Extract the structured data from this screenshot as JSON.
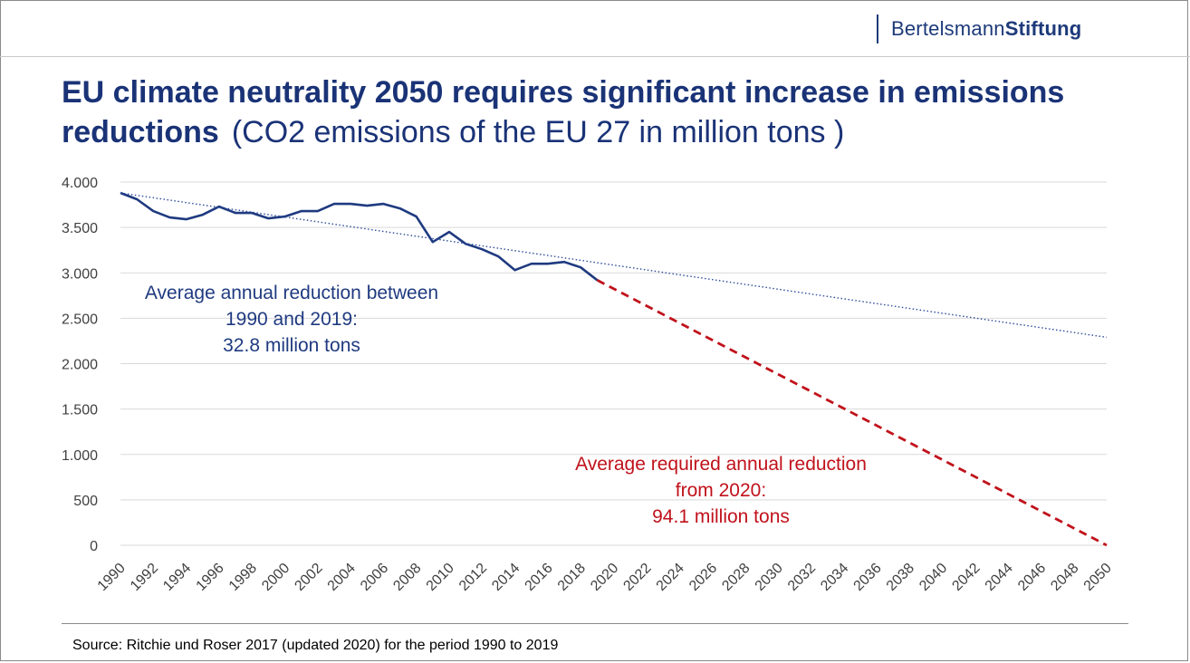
{
  "header": {
    "logo_part1": "Bertelsmann",
    "logo_part2": "Stiftung",
    "title_bold": "EU climate neutrality 2050 requires significant increase in emissions reductions",
    "title_sub": "(CO2 emissions of the EU 27 in million tons )"
  },
  "footer": {
    "source": "Source: Ritchie und Roser 2017 (updated 2020) for the period 1990 to 2019"
  },
  "colors": {
    "historical": "#1f3a80",
    "trend": "#2e4c9c",
    "required": "#c0121b",
    "grid": "#d9d9d9",
    "axis_text": "#404040"
  },
  "chart_data": {
    "type": "line",
    "title": "EU climate neutrality 2050 requires significant increase in emissions reductions",
    "xlabel": "",
    "ylabel": "",
    "xlim": [
      1990,
      2050
    ],
    "ylim": [
      0,
      4000
    ],
    "yticks": [
      0,
      500,
      1000,
      1500,
      2000,
      2500,
      3000,
      3500,
      4000
    ],
    "ytick_labels": [
      "0",
      "500",
      "1.000",
      "1.500",
      "2.000",
      "2.500",
      "3.000",
      "3.500",
      "4.000"
    ],
    "xticks": [
      1990,
      1992,
      1994,
      1996,
      1998,
      2000,
      2002,
      2004,
      2006,
      2008,
      2010,
      2012,
      2014,
      2016,
      2018,
      2020,
      2022,
      2024,
      2026,
      2028,
      2030,
      2032,
      2034,
      2036,
      2038,
      2040,
      2042,
      2044,
      2046,
      2048,
      2050
    ],
    "grid": true,
    "series": [
      {
        "style": "solid",
        "x": [
          1990,
          1991,
          1992,
          1993,
          1994,
          1995,
          1996,
          1997,
          1998,
          1999,
          2000,
          2001,
          2002,
          2003,
          2004,
          2005,
          2006,
          2007,
          2008,
          2009,
          2010,
          2011,
          2012,
          2013,
          2014,
          2015,
          2016,
          2017,
          2018,
          2019
        ],
        "y": [
          3880,
          3810,
          3680,
          3610,
          3590,
          3640,
          3730,
          3660,
          3660,
          3600,
          3620,
          3680,
          3680,
          3760,
          3760,
          3740,
          3760,
          3710,
          3620,
          3340,
          3450,
          3320,
          3260,
          3180,
          3030,
          3100,
          3100,
          3120,
          3060,
          2920
        ]
      },
      {
        "style": "dotted",
        "x": [
          1990,
          2050
        ],
        "y": [
          3880,
          2290
        ]
      },
      {
        "style": "dashed",
        "x": [
          2019,
          2050
        ],
        "y": [
          2920,
          0
        ]
      }
    ],
    "annotations": [
      {
        "lines": [
          "Average annual reduction between",
          "1990 and 2019:",
          "32.8 million tons"
        ],
        "color": "#1f3a80"
      },
      {
        "lines": [
          "Average required annual reduction",
          "from 2020:",
          "94.1 million tons"
        ],
        "color": "#c0121b"
      }
    ]
  }
}
